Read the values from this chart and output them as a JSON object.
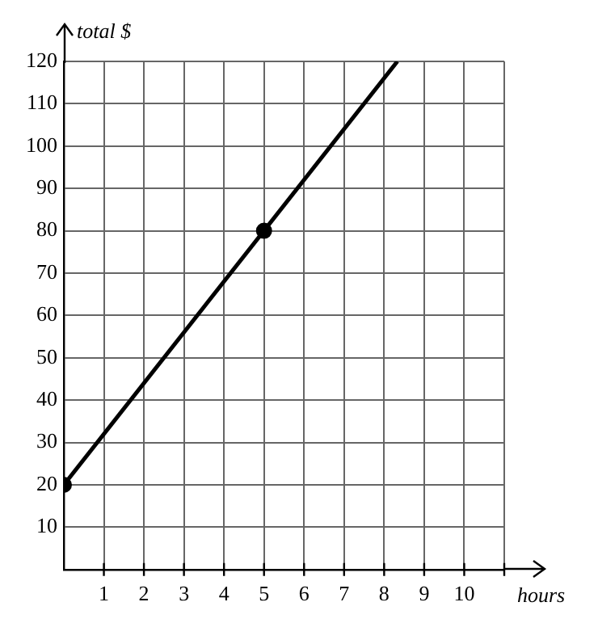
{
  "chart_data": {
    "type": "line",
    "xlabel": "hours",
    "ylabel": "total $",
    "series": [
      {
        "type": "line",
        "color": "#000000",
        "x": [
          0,
          8.33
        ],
        "values": [
          20,
          120
        ],
        "marker": "none",
        "line_style": "solid"
      },
      {
        "type": "scatter",
        "color": "#000000",
        "x": [
          0,
          5
        ],
        "values": [
          20,
          80
        ],
        "marker": "circle"
      }
    ],
    "xlim": [
      0,
      11
    ],
    "xticks": [
      1,
      2,
      3,
      4,
      5,
      6,
      7,
      8,
      9,
      10,
      {
        "value": 11,
        "label": null
      }
    ],
    "ylim": [
      0,
      120
    ],
    "yticks": [
      10,
      20,
      30,
      40,
      50,
      60,
      70,
      80,
      90,
      100,
      110,
      120
    ],
    "grid": true
  }
}
